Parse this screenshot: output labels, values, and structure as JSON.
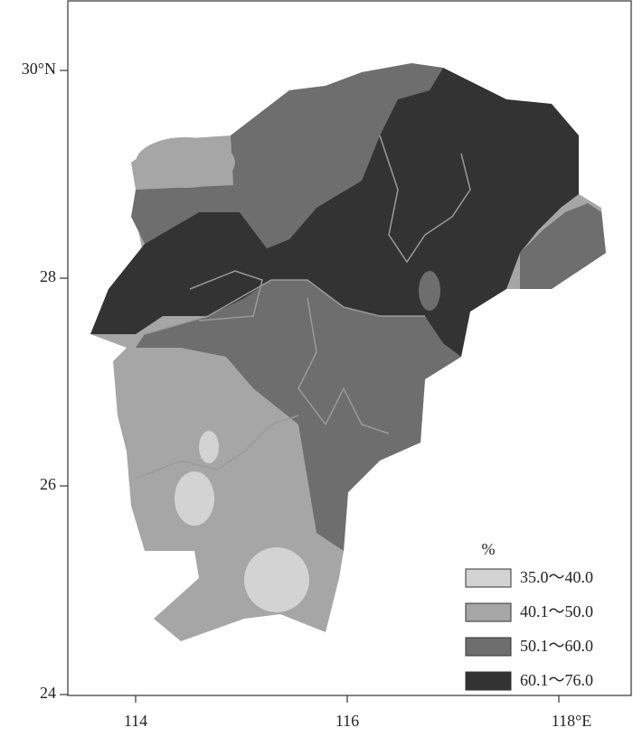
{
  "axes": {
    "y_ticks": [
      "30°N",
      "28",
      "26",
      "24"
    ],
    "x_ticks": [
      "114",
      "116",
      "118°E"
    ]
  },
  "legend": {
    "title": "%",
    "items": [
      {
        "label": "35.0～40.0",
        "color": "#d3d3d3"
      },
      {
        "label": "40.1～50.0",
        "color": "#a6a6a6"
      },
      {
        "label": "50.1～60.0",
        "color": "#6e6e6e"
      },
      {
        "label": "60.1～76.0",
        "color": "#333333"
      }
    ]
  }
}
